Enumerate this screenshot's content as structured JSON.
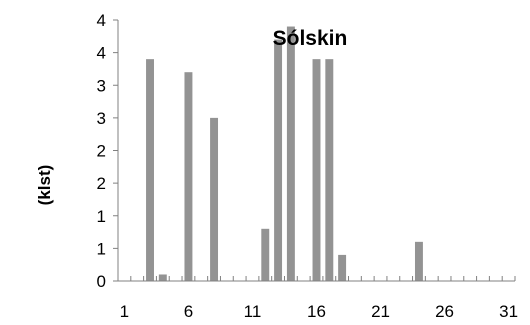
{
  "chart_data": {
    "type": "bar",
    "title": "Sólskin",
    "xlabel": "",
    "ylabel": "(klst)",
    "x": [
      1,
      2,
      3,
      4,
      5,
      6,
      7,
      8,
      9,
      10,
      11,
      12,
      13,
      14,
      15,
      16,
      17,
      18,
      19,
      20,
      21,
      22,
      23,
      24,
      25,
      26,
      27,
      28,
      29,
      30,
      31
    ],
    "values": [
      0,
      0,
      3.4,
      0.1,
      0,
      3.2,
      0,
      2.5,
      0,
      0,
      0,
      0.8,
      3.7,
      3.9,
      0,
      3.4,
      3.4,
      0.4,
      0,
      0,
      0,
      0,
      0,
      0.6,
      0,
      0,
      0,
      0,
      0,
      0,
      0
    ],
    "x_tick_labels": [
      "1",
      "6",
      "11",
      "16",
      "21",
      "26",
      "31"
    ],
    "y_tick_labels": [
      "0",
      "1",
      "1",
      "2",
      "2",
      "3",
      "3",
      "4",
      "4"
    ],
    "ylim": [
      0,
      4
    ],
    "grid": false,
    "legend": "none",
    "bar_color": "#939393"
  }
}
